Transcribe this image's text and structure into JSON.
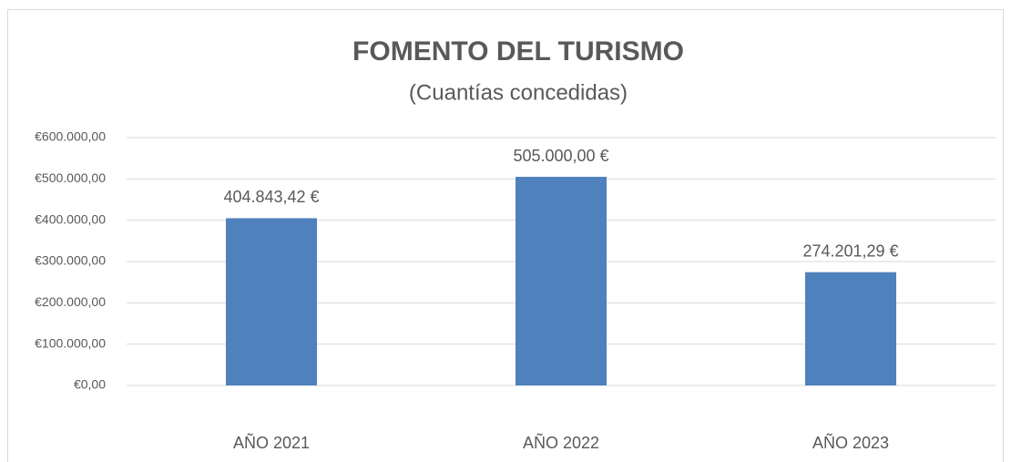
{
  "chart_data": {
    "type": "bar",
    "title": "FOMENTO DEL TURISMO",
    "subtitle": "(Cuantías concedidas)",
    "categories": [
      "AÑO 2021",
      "AÑO 2022",
      "AÑO 2023"
    ],
    "values": [
      404843.42,
      505000.0,
      274201.29
    ],
    "value_labels": [
      "404.843,42 €",
      "505.000,00 €",
      "274.201,29 €"
    ],
    "color": "#4f81bd",
    "ylim": [
      0,
      600000
    ],
    "yticks": [
      {
        "value": 0,
        "label": "€0,00"
      },
      {
        "value": 100000,
        "label": "€100.000,00"
      },
      {
        "value": 200000,
        "label": "€200.000,00"
      },
      {
        "value": 300000,
        "label": "€300.000,00"
      },
      {
        "value": 400000,
        "label": "€400.000,00"
      },
      {
        "value": 500000,
        "label": "€500.000,00"
      },
      {
        "value": 600000,
        "label": "€600.000,00"
      }
    ],
    "grid": true
  }
}
